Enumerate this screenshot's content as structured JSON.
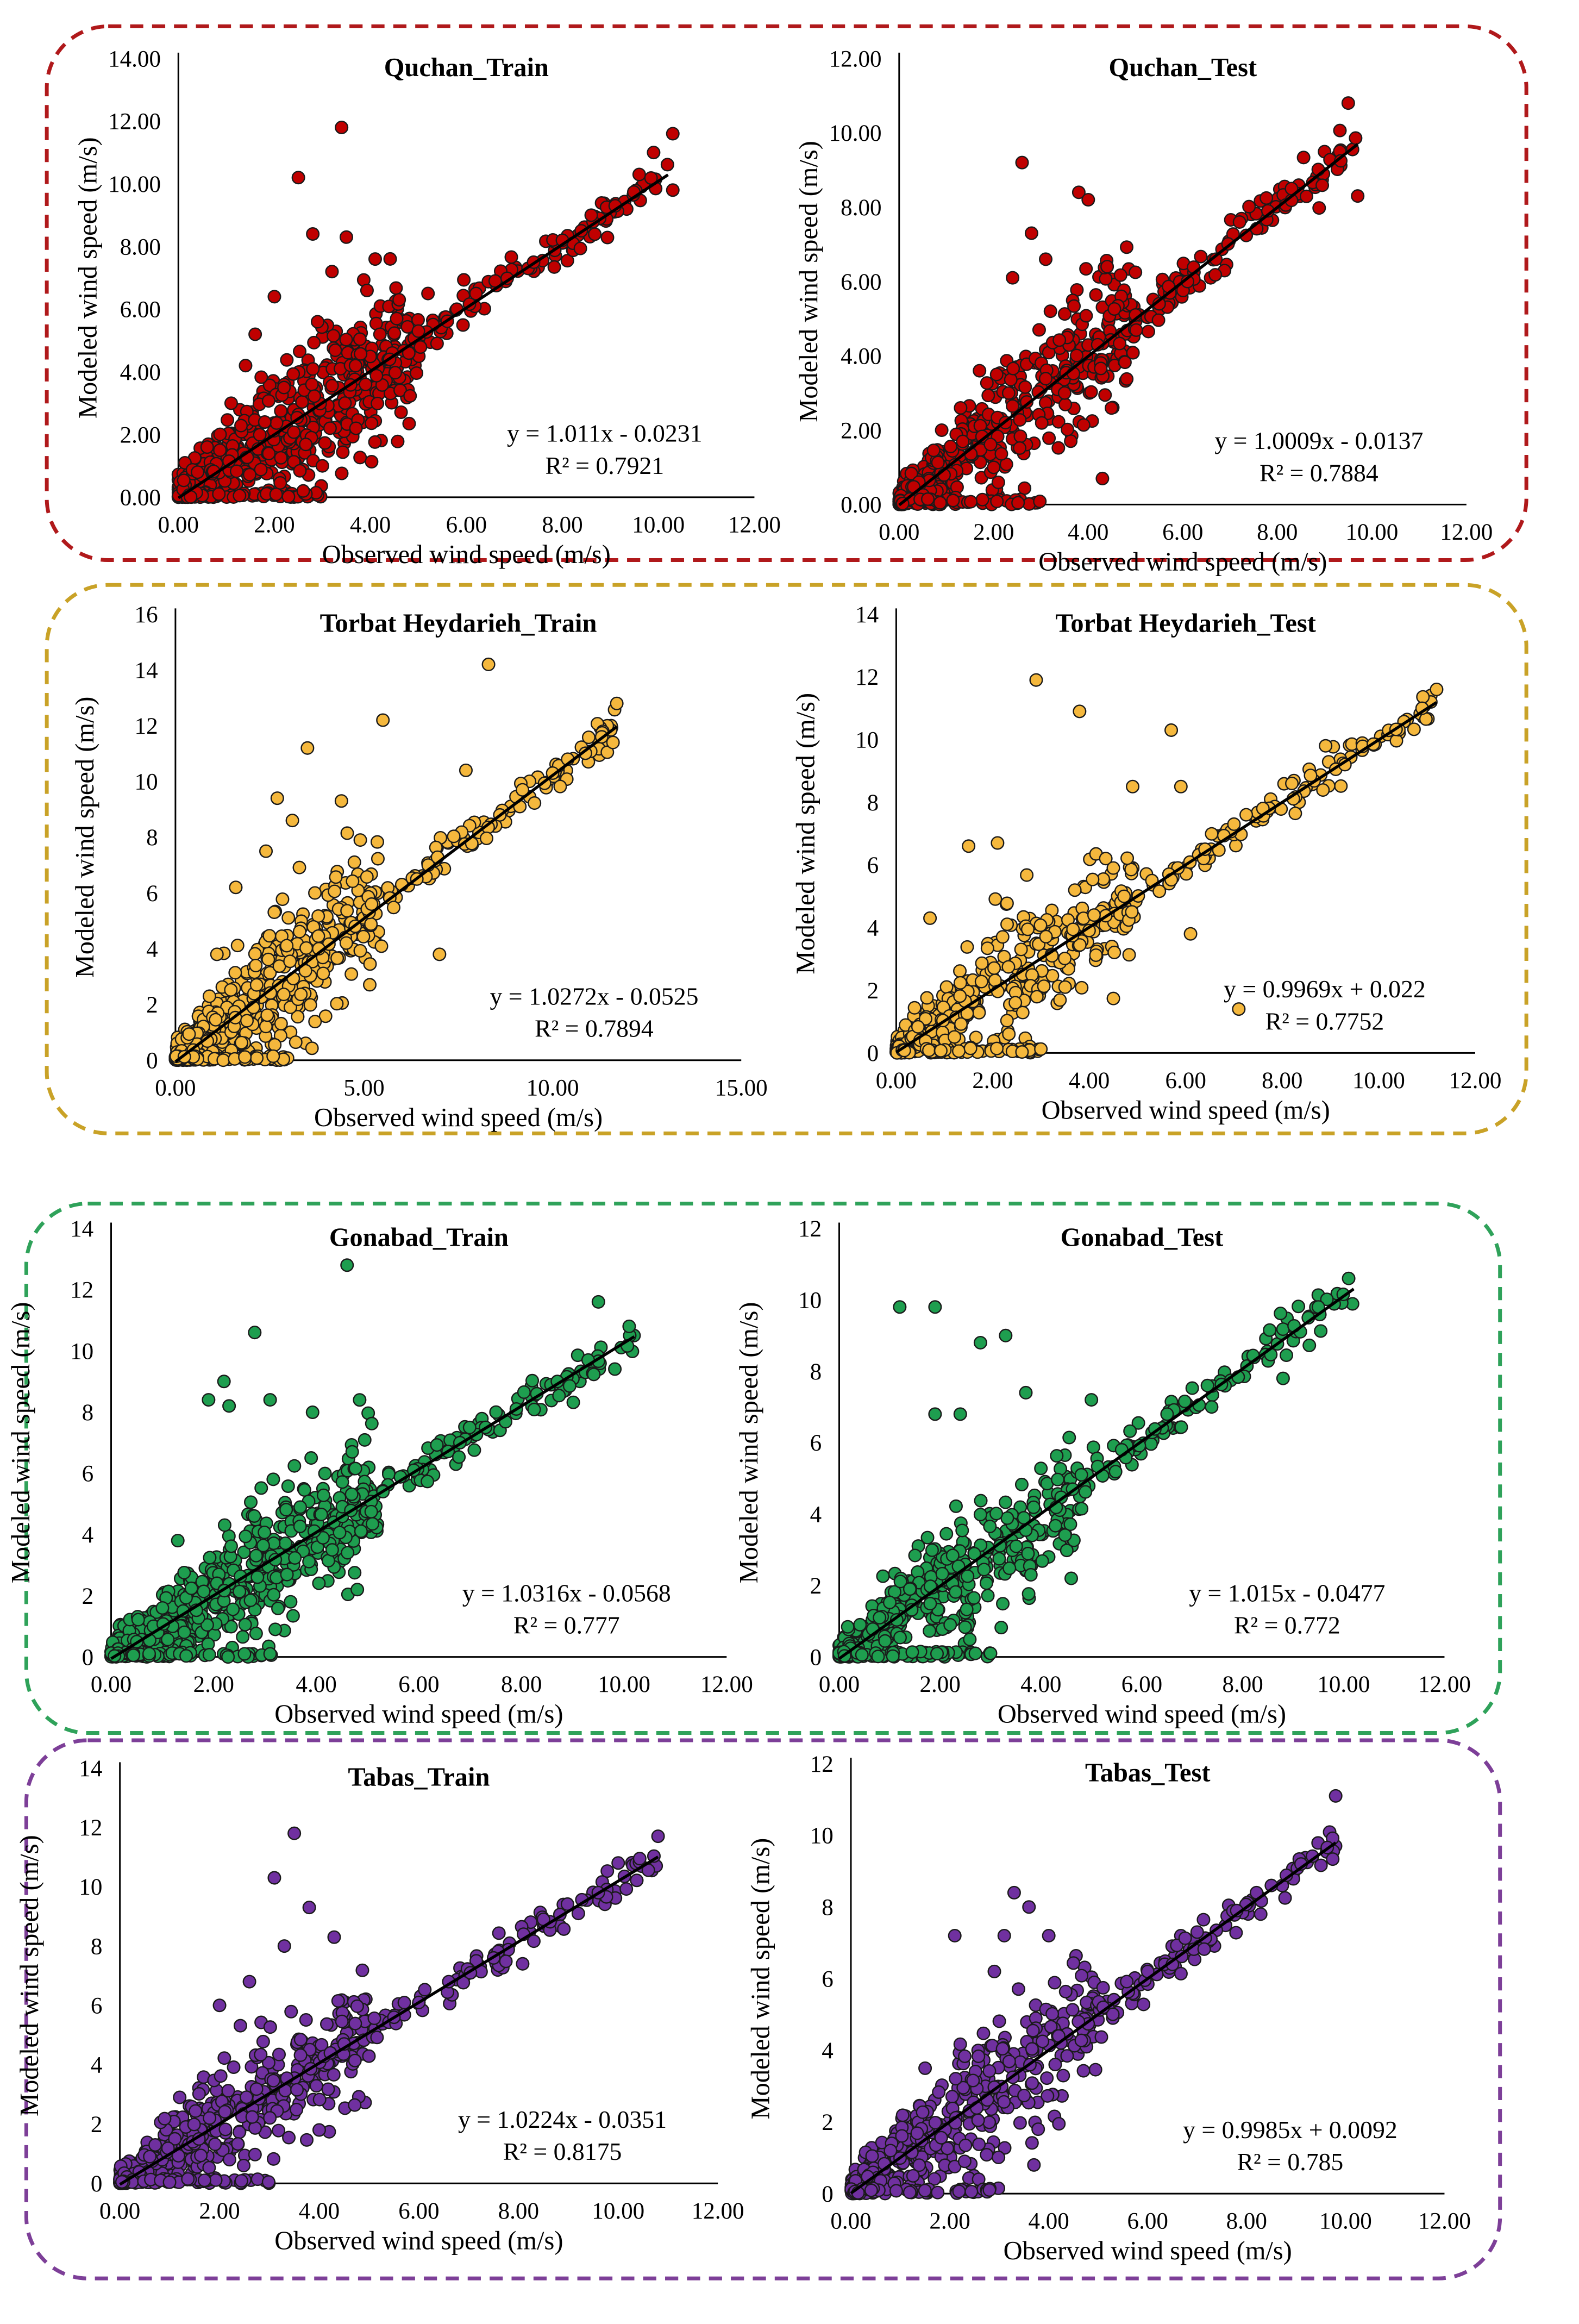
{
  "figure": {
    "axis_x_label": "Observed wind speed (m/s)",
    "axis_y_label": "Modeled wind speed (m/s)"
  },
  "groups": [
    {
      "station": "Quchan",
      "border_color": "#b0191b",
      "point_color": "#c00000"
    },
    {
      "station": "Torbat Heydarieh",
      "border_color": "#c9a227",
      "point_color": "#f5b83d"
    },
    {
      "station": "Gonabad",
      "border_color": "#2fa25a",
      "point_color": "#1e9e4f"
    },
    {
      "station": "Tabas",
      "border_color": "#7d3f98",
      "point_color": "#7030a0"
    }
  ],
  "chart_data": [
    {
      "type": "scatter",
      "title": "Quchan_Train",
      "group": 0,
      "xlabel": "Observed wind speed (m/s)",
      "ylabel": "Modeled wind speed (m/s)",
      "xlim": [
        0,
        12
      ],
      "ylim": [
        0,
        14
      ],
      "xticks": [
        "0.00",
        "2.00",
        "4.00",
        "6.00",
        "8.00",
        "10.00",
        "12.00"
      ],
      "yticks": [
        "0.00",
        "2.00",
        "4.00",
        "6.00",
        "8.00",
        "10.00",
        "12.00",
        "14.00"
      ],
      "xtick_values": [
        0,
        2,
        4,
        6,
        8,
        10,
        12
      ],
      "ytick_values": [
        0,
        2,
        4,
        6,
        8,
        10,
        12,
        14
      ],
      "fit": {
        "slope": 1.011,
        "intercept": -0.0231,
        "x_range": [
          0,
          10.2
        ]
      },
      "equation": "y = 1.011x - 0.0231",
      "r2": "R² = 0.7921",
      "points": [
        [
          3.4,
          11.8
        ],
        [
          2.5,
          10.2
        ],
        [
          2.8,
          8.4
        ],
        [
          3.5,
          8.3
        ],
        [
          4.1,
          7.6
        ],
        [
          3.2,
          7.2
        ],
        [
          2.0,
          6.4
        ],
        [
          1.6,
          5.2
        ],
        [
          4.6,
          6.3
        ],
        [
          5.2,
          6.5
        ],
        [
          10.3,
          11.6
        ],
        [
          9.9,
          11.0
        ],
        [
          10.3,
          9.8
        ],
        [
          9.6,
          10.3
        ],
        [
          8.6,
          9.0
        ],
        [
          7.4,
          7.5
        ],
        [
          6.6,
          6.9
        ],
        [
          5.8,
          6.0
        ],
        [
          4.8,
          4.6
        ],
        [
          4.4,
          4.4
        ],
        [
          3.9,
          3.6
        ],
        [
          2.6,
          0.2
        ],
        [
          0.6,
          1.6
        ],
        [
          1.1,
          3.0
        ],
        [
          1.4,
          4.2
        ],
        [
          0.4,
          0.8
        ],
        [
          8.0,
          8.2
        ],
        [
          9.1,
          9.3
        ],
        [
          6.2,
          6.5
        ],
        [
          5.0,
          5.3
        ],
        [
          3.7,
          2.2
        ],
        [
          2.9,
          5.6
        ],
        [
          2.2,
          3.5
        ],
        [
          1.8,
          2.4
        ],
        [
          3.0,
          1.0
        ],
        [
          4.2,
          5.2
        ]
      ],
      "cloud": {
        "n": 650,
        "xmax": 5.0,
        "spread": 2.0
      }
    },
    {
      "type": "scatter",
      "title": "Quchan_Test",
      "group": 0,
      "xlabel": "Observed wind speed (m/s)",
      "ylabel": "Modeled wind speed (m/s)",
      "xlim": [
        0,
        12
      ],
      "ylim": [
        0,
        12
      ],
      "xticks": [
        "0.00",
        "2.00",
        "4.00",
        "6.00",
        "8.00",
        "10.00",
        "12.00"
      ],
      "yticks": [
        "0.00",
        "2.00",
        "4.00",
        "6.00",
        "8.00",
        "10.00",
        "12.00"
      ],
      "xtick_values": [
        0,
        2,
        4,
        6,
        8,
        10,
        12
      ],
      "ytick_values": [
        0,
        2,
        4,
        6,
        8,
        10,
        12
      ],
      "fit": {
        "slope": 1.0009,
        "intercept": -0.0137,
        "x_range": [
          0,
          9.7
        ]
      },
      "equation": "y = 1.0009x - 0.0137",
      "r2": "R² = 0.7884",
      "points": [
        [
          9.5,
          10.8
        ],
        [
          9.7,
          8.3
        ],
        [
          2.6,
          9.2
        ],
        [
          3.8,
          8.4
        ],
        [
          4.0,
          8.2
        ],
        [
          2.8,
          7.3
        ],
        [
          3.1,
          6.6
        ],
        [
          2.4,
          6.1
        ],
        [
          4.4,
          6.4
        ],
        [
          8.3,
          8.5
        ],
        [
          7.2,
          7.6
        ],
        [
          6.1,
          6.0
        ],
        [
          5.0,
          5.1
        ],
        [
          4.2,
          4.3
        ],
        [
          4.3,
          0.7
        ],
        [
          3.5,
          3.0
        ],
        [
          1.7,
          3.6
        ],
        [
          0.9,
          2.0
        ],
        [
          1.3,
          2.6
        ],
        [
          2.0,
          1.0
        ],
        [
          6.7,
          6.6
        ],
        [
          7.8,
          7.9
        ],
        [
          5.5,
          5.4
        ],
        [
          3.2,
          5.2
        ]
      ],
      "cloud": {
        "n": 480,
        "xmax": 5.0,
        "spread": 1.8
      }
    },
    {
      "type": "scatter",
      "title": "Torbat Heydarieh_Train",
      "group": 1,
      "xlabel": "Observed wind speed (m/s)",
      "ylabel": "Modeled wind speed (m/s)",
      "xlim": [
        0,
        15
      ],
      "ylim": [
        0,
        16
      ],
      "xticks": [
        "0.00",
        "5.00",
        "10.00",
        "15.00"
      ],
      "yticks": [
        "0",
        "2",
        "4",
        "6",
        "8",
        "10",
        "12",
        "14",
        "16"
      ],
      "xtick_values": [
        0,
        5,
        10,
        15
      ],
      "ytick_values": [
        0,
        2,
        4,
        6,
        8,
        10,
        12,
        14,
        16
      ],
      "fit": {
        "slope": 1.0272,
        "intercept": -0.0525,
        "x_range": [
          0,
          11.7
        ]
      },
      "equation": "y = 1.0272x - 0.0525",
      "r2": "R² = 0.7894",
      "points": [
        [
          8.3,
          14.2
        ],
        [
          5.5,
          12.2
        ],
        [
          3.5,
          11.2
        ],
        [
          2.7,
          9.4
        ],
        [
          4.4,
          9.3
        ],
        [
          3.1,
          8.6
        ],
        [
          4.9,
          7.9
        ],
        [
          7.7,
          10.4
        ],
        [
          11.7,
          12.8
        ],
        [
          11.3,
          11.6
        ],
        [
          11.6,
          11.4
        ],
        [
          10.0,
          10.3
        ],
        [
          9.2,
          9.7
        ],
        [
          7.0,
          3.8
        ],
        [
          6.7,
          7.0
        ],
        [
          6.0,
          6.3
        ],
        [
          5.2,
          5.6
        ],
        [
          2.4,
          7.5
        ],
        [
          1.6,
          6.2
        ],
        [
          1.1,
          3.8
        ],
        [
          3.8,
          4.0
        ],
        [
          8.6,
          8.8
        ],
        [
          10.4,
          10.8
        ],
        [
          6.4,
          6.5
        ]
      ],
      "cloud": {
        "n": 540,
        "xmax": 5.5,
        "spread": 2.2
      }
    },
    {
      "type": "scatter",
      "title": "Torbat Heydarieh_Test",
      "group": 1,
      "xlabel": "Observed wind speed (m/s)",
      "ylabel": "Modeled wind speed (m/s)",
      "xlim": [
        0,
        12
      ],
      "ylim": [
        0,
        14
      ],
      "xticks": [
        "0.00",
        "2.00",
        "4.00",
        "6.00",
        "8.00",
        "10.00",
        "12.00"
      ],
      "yticks": [
        "0",
        "2",
        "4",
        "6",
        "8",
        "10",
        "12",
        "14"
      ],
      "xtick_values": [
        0,
        2,
        4,
        6,
        8,
        10,
        12
      ],
      "ytick_values": [
        0,
        2,
        4,
        6,
        8,
        10,
        12,
        14
      ],
      "fit": {
        "slope": 0.9969,
        "intercept": 0.022,
        "x_range": [
          0,
          11.2
        ]
      },
      "equation": "y = 0.9969x + 0.022",
      "r2": "R² = 0.7752",
      "points": [
        [
          2.9,
          11.9
        ],
        [
          3.8,
          10.9
        ],
        [
          5.7,
          10.3
        ],
        [
          11.2,
          11.6
        ],
        [
          10.9,
          11.0
        ],
        [
          8.9,
          9.8
        ],
        [
          8.2,
          8.6
        ],
        [
          7.1,
          1.4
        ],
        [
          7.0,
          7.3
        ],
        [
          5.9,
          8.5
        ],
        [
          4.9,
          8.5
        ],
        [
          6.4,
          6.5
        ],
        [
          6.1,
          3.8
        ],
        [
          5.3,
          5.5
        ],
        [
          4.1,
          4.4
        ],
        [
          1.5,
          6.6
        ],
        [
          2.1,
          6.7
        ],
        [
          0.7,
          4.3
        ],
        [
          3.5,
          2.1
        ],
        [
          9.3,
          9.2
        ],
        [
          7.6,
          7.8
        ],
        [
          4.5,
          5.9
        ]
      ],
      "cloud": {
        "n": 460,
        "xmax": 5.0,
        "spread": 1.9
      }
    },
    {
      "type": "scatter",
      "title": "Gonabad_Train",
      "group": 2,
      "xlabel": "Observed wind speed (m/s)",
      "ylabel": "Modeled wind speed (m/s)",
      "xlim": [
        0,
        12
      ],
      "ylim": [
        0,
        14
      ],
      "xticks": [
        "0.00",
        "2.00",
        "4.00",
        "6.00",
        "8.00",
        "10.00",
        "12.00"
      ],
      "yticks": [
        "0",
        "2",
        "4",
        "6",
        "8",
        "10",
        "12",
        "14"
      ],
      "xtick_values": [
        0,
        2,
        4,
        6,
        8,
        10,
        12
      ],
      "ytick_values": [
        0,
        2,
        4,
        6,
        8,
        10,
        12,
        14
      ],
      "fit": {
        "slope": 1.0316,
        "intercept": -0.0568,
        "x_range": [
          0,
          10.2
        ]
      },
      "equation": "y = 1.0316x - 0.0568",
      "r2": "R² = 0.777",
      "points": [
        [
          4.6,
          12.8
        ],
        [
          2.8,
          10.6
        ],
        [
          2.2,
          9.0
        ],
        [
          3.1,
          8.4
        ],
        [
          1.9,
          8.4
        ],
        [
          2.3,
          8.2
        ],
        [
          3.9,
          6.5
        ],
        [
          4.7,
          6.7
        ],
        [
          9.5,
          11.6
        ],
        [
          10.1,
          10.8
        ],
        [
          9.3,
          9.7
        ],
        [
          8.7,
          9.0
        ],
        [
          7.9,
          8.1
        ],
        [
          6.8,
          7.0
        ],
        [
          5.9,
          6.1
        ],
        [
          4.8,
          2.2
        ],
        [
          3.5,
          1.8
        ],
        [
          3.2,
          0.9
        ],
        [
          1.3,
          3.8
        ],
        [
          1.0,
          1.6
        ],
        [
          0.5,
          0.5
        ],
        [
          2.6,
          0.1
        ],
        [
          3.1,
          0.1
        ],
        [
          5.3,
          5.4
        ],
        [
          7.3,
          7.5
        ],
        [
          8.3,
          8.6
        ]
      ],
      "cloud": {
        "n": 620,
        "xmax": 5.2,
        "spread": 1.9
      }
    },
    {
      "type": "scatter",
      "title": "Gonabad_Test",
      "group": 2,
      "xlabel": "Observed wind speed (m/s)",
      "ylabel": "Modeled wind speed (m/s)",
      "xlim": [
        0,
        12
      ],
      "ylim": [
        0,
        12
      ],
      "xticks": [
        "0.00",
        "2.00",
        "4.00",
        "6.00",
        "8.00",
        "10.00",
        "12.00"
      ],
      "yticks": [
        "0",
        "2",
        "4",
        "6",
        "8",
        "10",
        "12"
      ],
      "xtick_values": [
        0,
        2,
        4,
        6,
        8,
        10,
        12
      ],
      "ytick_values": [
        0,
        2,
        4,
        6,
        8,
        10,
        12
      ],
      "fit": {
        "slope": 1.015,
        "intercept": -0.0477,
        "x_range": [
          0,
          10.2
        ]
      },
      "equation": "y = 1.015x - 0.0477",
      "r2": "R² = 0.772",
      "points": [
        [
          1.2,
          9.8
        ],
        [
          1.9,
          9.8
        ],
        [
          2.8,
          8.8
        ],
        [
          3.3,
          9.0
        ],
        [
          3.7,
          7.4
        ],
        [
          5.0,
          7.2
        ],
        [
          10.1,
          10.6
        ],
        [
          9.5,
          9.8
        ],
        [
          9.3,
          9.5
        ],
        [
          8.8,
          7.8
        ],
        [
          7.3,
          7.6
        ],
        [
          6.5,
          6.8
        ],
        [
          5.6,
          5.8
        ],
        [
          4.8,
          5.1
        ],
        [
          3.8,
          2.3
        ],
        [
          4.6,
          2.2
        ],
        [
          2.2,
          0.9
        ],
        [
          1.4,
          1.9
        ],
        [
          0.8,
          1.1
        ],
        [
          1.9,
          6.8
        ],
        [
          2.4,
          6.8
        ],
        [
          2.7,
          0.1
        ],
        [
          3.0,
          0.1
        ]
      ],
      "cloud": {
        "n": 420,
        "xmax": 4.8,
        "spread": 1.6
      }
    },
    {
      "type": "scatter",
      "title": "Tabas_Train",
      "group": 3,
      "xlabel": "Observed wind speed (m/s)",
      "ylabel": "Modeled wind speed (m/s)",
      "xlim": [
        0,
        12
      ],
      "ylim": [
        0,
        14
      ],
      "xticks": [
        "0.00",
        "2.00",
        "4.00",
        "6.00",
        "8.00",
        "10.00",
        "12.00"
      ],
      "yticks": [
        "0",
        "2",
        "4",
        "6",
        "8",
        "10",
        "12",
        "14"
      ],
      "xtick_values": [
        0,
        2,
        4,
        6,
        8,
        10,
        12
      ],
      "ytick_values": [
        0,
        2,
        4,
        6,
        8,
        10,
        12,
        14
      ],
      "fit": {
        "slope": 1.0224,
        "intercept": -0.0351,
        "x_range": [
          0,
          10.8
        ]
      },
      "equation": "y = 1.0224x - 0.0351",
      "r2": "R² = 0.8175",
      "points": [
        [
          3.5,
          11.8
        ],
        [
          10.8,
          11.7
        ],
        [
          3.1,
          10.3
        ],
        [
          10.0,
          10.8
        ],
        [
          3.8,
          9.3
        ],
        [
          9.2,
          9.1
        ],
        [
          8.5,
          8.9
        ],
        [
          4.3,
          8.3
        ],
        [
          2.6,
          6.8
        ],
        [
          3.3,
          8.0
        ],
        [
          7.5,
          7.6
        ],
        [
          6.6,
          6.8
        ],
        [
          5.5,
          5.6
        ],
        [
          4.5,
          4.7
        ],
        [
          4.0,
          1.8
        ],
        [
          2.2,
          0.8
        ],
        [
          1.2,
          2.9
        ],
        [
          0.6,
          0.9
        ],
        [
          2.0,
          6.0
        ],
        [
          9.6,
          9.8
        ],
        [
          8.1,
          8.4
        ],
        [
          6.0,
          6.1
        ]
      ],
      "cloud": {
        "n": 500,
        "xmax": 5.0,
        "spread": 1.8
      }
    },
    {
      "type": "scatter",
      "title": "Tabas_Test",
      "group": 3,
      "xlabel": "Observed wind speed (m/s)",
      "ylabel": "Modeled wind speed (m/s)",
      "xlim": [
        0,
        12
      ],
      "ylim": [
        0,
        12
      ],
      "xticks": [
        "0.00",
        "2.00",
        "4.00",
        "6.00",
        "8.00",
        "10.00",
        "12.00"
      ],
      "yticks": [
        "0",
        "2",
        "4",
        "6",
        "8",
        "10",
        "12"
      ],
      "xtick_values": [
        0,
        2,
        4,
        6,
        8,
        10,
        12
      ],
      "ytick_values": [
        0,
        2,
        4,
        6,
        8,
        10,
        12
      ],
      "fit": {
        "slope": 0.9985,
        "intercept": 0.0092,
        "x_range": [
          0,
          9.8
        ]
      },
      "equation": "y = 0.9985x + 0.0092",
      "r2": "R² = 0.785",
      "points": [
        [
          9.8,
          11.1
        ],
        [
          3.3,
          8.4
        ],
        [
          3.6,
          8.0
        ],
        [
          3.1,
          7.2
        ],
        [
          2.1,
          7.2
        ],
        [
          4.0,
          7.2
        ],
        [
          9.1,
          9.2
        ],
        [
          8.5,
          8.6
        ],
        [
          7.8,
          7.9
        ],
        [
          7.0,
          7.3
        ],
        [
          6.0,
          6.2
        ],
        [
          5.1,
          5.2
        ],
        [
          4.2,
          4.4
        ],
        [
          3.7,
          0.8
        ],
        [
          2.3,
          0.9
        ],
        [
          1.5,
          3.5
        ],
        [
          0.8,
          1.2
        ],
        [
          2.8,
          0.1
        ],
        [
          2.9,
          6.2
        ],
        [
          8.2,
          8.4
        ],
        [
          6.5,
          6.4
        ],
        [
          4.6,
          4.8
        ]
      ],
      "cloud": {
        "n": 480,
        "xmax": 5.0,
        "spread": 1.7
      }
    }
  ]
}
